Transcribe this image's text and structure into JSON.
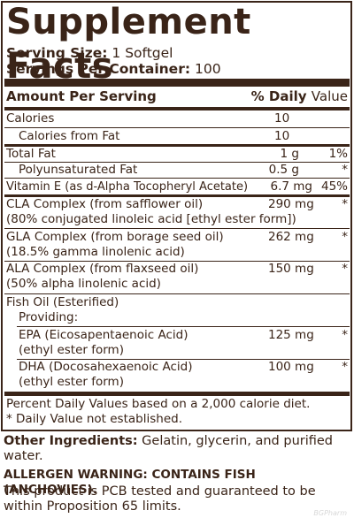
{
  "title": "Supplement Facts",
  "serving": {
    "size_label": "Serving Size:",
    "size_value": "1 Softgel",
    "per_container_label": "Servings Per Container:",
    "per_container_value": "100"
  },
  "header": {
    "amount": "Amount Per Serving",
    "daily_pct": "% Daily",
    "daily_value": "Value"
  },
  "rows": {
    "calories": {
      "name": "Calories",
      "amount": "10"
    },
    "calories_fat": {
      "name": "Calories from Fat",
      "amount": "10"
    },
    "total_fat": {
      "name": "Total Fat",
      "amount": "1 g",
      "dv": "1%"
    },
    "poly_fat": {
      "name": "Polyunsaturated Fat",
      "amount": "0.5 g",
      "dv": "*"
    },
    "vitamin_e": {
      "name": "Vitamin E (as d-Alpha Tocopheryl Acetate)",
      "amount": "6.7 mg",
      "dv": "45%"
    },
    "cla": {
      "name": "CLA Complex (from safflower oil)",
      "sub": "(80% conjugated linoleic acid [ethyl ester form])",
      "amount": "290 mg",
      "dv": "*"
    },
    "gla": {
      "name": "GLA Complex (from borage seed oil)",
      "sub": "(18.5% gamma linolenic acid)",
      "amount": "262 mg",
      "dv": "*"
    },
    "ala": {
      "name": "ALA Complex (from flaxseed oil)",
      "sub": "(50% alpha linolenic acid)",
      "amount": "150 mg",
      "dv": "*"
    },
    "fish": {
      "name": "Fish Oil (Esterified)",
      "sub": "Providing:"
    },
    "epa": {
      "name": "EPA (Eicosapentaenoic Acid)",
      "sub": "(ethyl ester form)",
      "amount": "125 mg",
      "dv": "*"
    },
    "dha": {
      "name": "DHA (Docosahexaenoic Acid)",
      "sub": "(ethyl ester form)",
      "amount": "100 mg",
      "dv": "*"
    }
  },
  "footnotes": {
    "percent": "Percent Daily Values based on a 2,000 calorie diet.",
    "not_established": "* Daily Value not established."
  },
  "below": {
    "other_label": "Other Ingredients:",
    "other_text": " Gelatin, glycerin, and purified water.",
    "allergen": "ALLERGEN WARNING: CONTAINS FISH (ANCHOVIES).",
    "pcb": "This product is PCB tested and guaranteed to be within Proposition 65 limits."
  },
  "watermark": "BGPharm"
}
